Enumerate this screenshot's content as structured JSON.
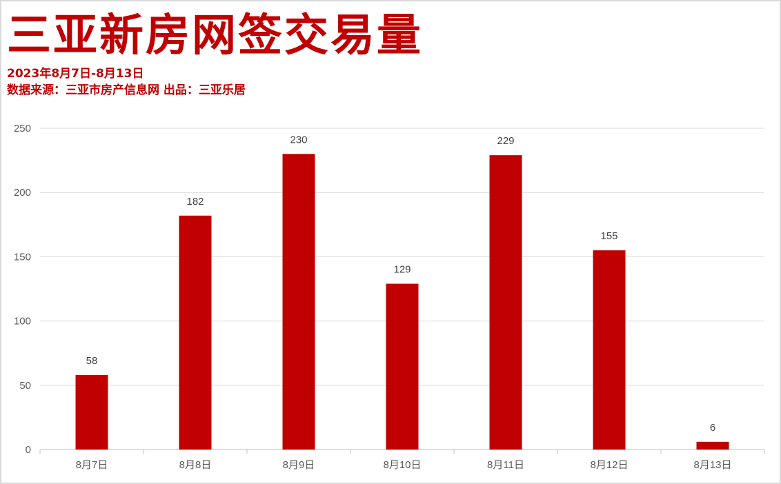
{
  "header": {
    "title": "三亚新房网签交易量",
    "date_range": "2023年8月7日-8月13日",
    "source": "数据来源：三亚市房产信息网  出品：三亚乐居"
  },
  "chart_data": {
    "type": "bar",
    "title": "三亚新房网签交易量",
    "categories": [
      "8月7日",
      "8月8日",
      "8月9日",
      "8月10日",
      "8月11日",
      "8月12日",
      "8月13日"
    ],
    "values": [
      58,
      182,
      230,
      129,
      229,
      155,
      6
    ],
    "ylim": [
      0,
      250
    ],
    "yticks": [
      0,
      50,
      100,
      150,
      200,
      250
    ],
    "grid": true,
    "data_labels": true,
    "bar_color": "#c00000",
    "xlabel": "",
    "ylabel": ""
  }
}
